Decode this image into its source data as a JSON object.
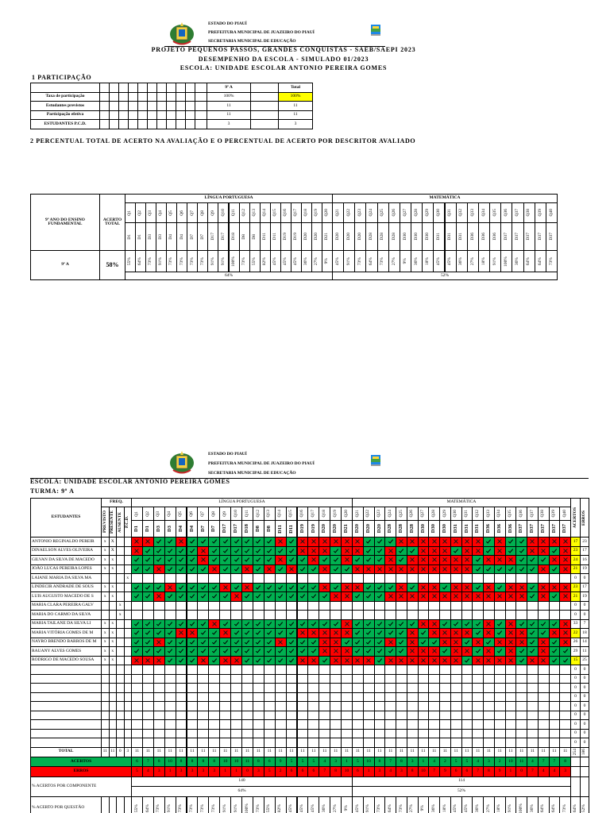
{
  "header": {
    "lines": [
      "ESTADO DO PIAUÍ",
      "PREFEITURA MUNICIPAL DE JUAZEIRO DO PIAUÍ",
      "SECRETARIA MUNICIPAL DE EDUCAÇÃO"
    ],
    "titles": [
      "PROJETO PEQUENOS PASSOS, GRANDES CONQUISTAS - SAEB/SAEPI 2023",
      "DESEMPENHO DA ESCOLA - SIMULADO 01/2023",
      "ESCOLA: UNIDADE ESCOLAR ANTONIO PEREIRA GOMES"
    ]
  },
  "participation": {
    "title": "1 PARTICIPAÇÃO",
    "columns": [
      "9º A",
      "Total"
    ],
    "rows": [
      {
        "label": "Taxa de participação",
        "values": [
          "100%",
          "100%"
        ]
      },
      {
        "label": "Estudantes previstos",
        "values": [
          11,
          11
        ]
      },
      {
        "label": "Participação efetiva",
        "values": [
          11,
          11
        ]
      },
      {
        "label": "ESTUDANTES P.C.D.",
        "values": [
          3,
          3
        ]
      }
    ]
  },
  "section2_title": "2 PERCENTUAL TOTAL DE ACERTO NA AVALIAÇÃO E O PERCENTUAL DE ACERTO POR DESCRITOR AVALIADO",
  "results": {
    "class_label": "9º ANO DO ENSINO FUNDAMENTAL",
    "acerto_total_label": "ACERTO TOTAL",
    "class": "9º A",
    "acerto_total": "58%",
    "subjects": [
      {
        "name": "LÍNGUA PORTUGUESA",
        "percent": "64%"
      },
      {
        "name": "MATEMÁTICA",
        "percent": "52%"
      }
    ]
  },
  "questions": [
    "Q1",
    "Q2",
    "Q3",
    "Q4",
    "Q5",
    "Q6",
    "Q7",
    "Q8",
    "Q9",
    "Q10",
    "Q11",
    "Q12",
    "Q13",
    "Q14",
    "Q15",
    "Q16",
    "Q17",
    "Q18",
    "Q19",
    "Q20",
    "Q21",
    "Q22",
    "Q23",
    "Q24",
    "Q25",
    "Q26",
    "Q27",
    "Q28",
    "Q29",
    "Q30",
    "Q31",
    "Q32",
    "Q33",
    "Q34",
    "Q35",
    "Q36",
    "Q37",
    "Q38",
    "Q39",
    "Q40"
  ],
  "descriptors": [
    "D1",
    "D1",
    "D3",
    "D3",
    "D4",
    "D4",
    "D7",
    "D7",
    "D17",
    "D17",
    "D18",
    "D8",
    "D8",
    "D11",
    "D11",
    "D19",
    "D19",
    "D20",
    "D20",
    "D21",
    "D20",
    "D20",
    "D20",
    "D28",
    "D28",
    "D28",
    "D30",
    "D30",
    "D30",
    "D31",
    "D31",
    "D31",
    "D36",
    "D36",
    "D36",
    "D37",
    "D37",
    "D37",
    "D37",
    "D37"
  ],
  "question_percent": [
    "55%",
    "64%",
    "73%",
    "91%",
    "73%",
    "73%",
    "73%",
    "73%",
    "91%",
    "91%",
    "100%",
    "73%",
    "55%",
    "82%",
    "45%",
    "45%",
    "45%",
    "36%",
    "27%",
    "9%",
    "45%",
    "91%",
    "73%",
    "64%",
    "73%",
    "27%",
    "9%",
    "36%",
    "18%",
    "45%",
    "45%",
    "36%",
    "27%",
    "18%",
    "91%",
    "100%",
    "36%",
    "64%",
    "64%",
    "73%"
  ],
  "grid": {
    "school": "ESCOLA: UNIDADE ESCOLAR ANTONIO PEREIRA GOMES",
    "class": "TURMA: 9º A",
    "students_label": "ESTUDANTES",
    "freq_label": "FREQ.",
    "freq_columns": [
      "PREVISTO",
      "PRESENTE",
      "AUSENTE",
      "P.C.D."
    ],
    "acertos_label": "ACERTOS",
    "erros_label": "ERROS",
    "correct_color": "#00b050",
    "wrong_color": "#ff0000",
    "highlight_color": "#ffff00",
    "students": [
      {
        "name": "ANTONIO REGINALDO PEREIR",
        "freq": [
          "x",
          "X",
          null,
          null
        ],
        "answers": [
          0,
          0,
          1,
          1,
          0,
          1,
          1,
          1,
          1,
          1,
          1,
          1,
          1,
          0,
          1,
          0,
          0,
          0,
          0,
          0,
          0,
          1,
          1,
          1,
          0,
          0,
          0,
          0,
          0,
          0,
          0,
          0,
          1,
          0,
          1,
          1,
          0,
          0,
          0,
          0
        ],
        "acertos": 17,
        "erros": 23,
        "highlight": true
      },
      {
        "name": "DINAELSON ALVES OLIVEIRA",
        "freq": [
          "x",
          "X",
          null,
          null
        ],
        "answers": [
          0,
          1,
          1,
          1,
          1,
          1,
          0,
          1,
          1,
          1,
          1,
          1,
          1,
          1,
          1,
          0,
          0,
          0,
          1,
          0,
          0,
          1,
          1,
          0,
          1,
          1,
          0,
          0,
          0,
          1,
          0,
          0,
          1,
          0,
          1,
          1,
          0,
          0,
          1,
          0
        ],
        "acertos": 23,
        "erros": 17,
        "highlight": true
      },
      {
        "name": "GILVAN DA SILVA DE MACEDO",
        "freq": [
          "x",
          "x",
          null,
          null
        ],
        "answers": [
          1,
          1,
          1,
          1,
          1,
          1,
          0,
          1,
          1,
          1,
          1,
          1,
          1,
          0,
          1,
          1,
          0,
          1,
          1,
          0,
          1,
          1,
          1,
          0,
          1,
          0,
          0,
          0,
          0,
          0,
          0,
          1,
          0,
          0,
          0,
          1,
          1,
          1,
          0,
          0
        ],
        "acertos": 24,
        "erros": 16,
        "highlight": true
      },
      {
        "name": "JOÃO LUCAS PEREIRA LOPES",
        "freq": [
          "x",
          "x",
          null,
          null
        ],
        "answers": [
          1,
          1,
          0,
          1,
          1,
          1,
          1,
          0,
          1,
          1,
          0,
          1,
          0,
          1,
          0,
          1,
          1,
          0,
          1,
          1,
          0,
          0,
          0,
          0,
          0,
          0,
          0,
          0,
          0,
          0,
          0,
          1,
          1,
          1,
          1,
          1,
          1,
          0,
          1,
          0
        ],
        "acertos": 21,
        "erros": 19,
        "highlight": true
      },
      {
        "name": "LAIANE MARIA DA SILVA MA",
        "freq": [
          null,
          null,
          null,
          "x"
        ],
        "answers": null,
        "acertos": 0,
        "erros": 0,
        "highlight": false
      },
      {
        "name": "LINDECIR ANDRADE DE SOUS",
        "freq": [
          "x",
          "x",
          null,
          null
        ],
        "answers": [
          1,
          1,
          1,
          0,
          1,
          1,
          1,
          1,
          0,
          1,
          0,
          1,
          1,
          1,
          1,
          1,
          1,
          0,
          1,
          0,
          0,
          1,
          1,
          1,
          0,
          1,
          0,
          0,
          1,
          0,
          0,
          1,
          0,
          1,
          0,
          0,
          1,
          0,
          0,
          0
        ],
        "acertos": 23,
        "erros": 17,
        "highlight": true
      },
      {
        "name": "LUIS AUGUSTO MACEDO DE S",
        "freq": [
          "x",
          "x",
          null,
          null
        ],
        "answers": [
          1,
          1,
          0,
          1,
          1,
          1,
          1,
          1,
          1,
          0,
          1,
          1,
          1,
          1,
          1,
          1,
          1,
          1,
          0,
          0,
          1,
          1,
          1,
          0,
          0,
          0,
          0,
          0,
          0,
          0,
          0,
          0,
          0,
          0,
          0,
          0,
          1,
          0,
          1,
          0
        ],
        "acertos": 21,
        "erros": 19,
        "highlight": true
      },
      {
        "name": "MARIA CLARA PEREIRA GALV",
        "freq": [
          null,
          null,
          "x",
          null
        ],
        "answers": null,
        "acertos": 0,
        "erros": 0,
        "highlight": false
      },
      {
        "name": "MARIA DO CARMO DA SILVA",
        "freq": [
          null,
          null,
          "x",
          null
        ],
        "answers": null,
        "acertos": 0,
        "erros": 0,
        "highlight": false
      },
      {
        "name": "MARIA TAILANE DA SILVA LI",
        "freq": [
          "x",
          "x",
          null,
          null
        ],
        "answers": [
          1,
          1,
          1,
          1,
          1,
          1,
          1,
          0,
          1,
          1,
          1,
          1,
          1,
          1,
          1,
          1,
          1,
          1,
          1,
          0,
          1,
          1,
          1,
          1,
          1,
          1,
          0,
          0,
          1,
          1,
          1,
          1,
          0,
          1,
          0,
          1,
          1,
          1,
          1,
          0
        ],
        "acertos": 33,
        "erros": 7,
        "highlight": false
      },
      {
        "name": "MARIA VITÓRIA GOMES DE M",
        "freq": [
          "x",
          "x",
          null,
          null
        ],
        "answers": [
          1,
          1,
          1,
          1,
          0,
          0,
          1,
          1,
          0,
          1,
          1,
          1,
          1,
          1,
          1,
          0,
          0,
          0,
          0,
          0,
          1,
          1,
          1,
          1,
          1,
          0,
          1,
          0,
          0,
          0,
          0,
          1,
          0,
          1,
          0,
          0,
          1,
          1,
          0,
          0
        ],
        "acertos": 22,
        "erros": 18,
        "highlight": true
      },
      {
        "name": "NAYRO BRENDO BARROS DE M",
        "freq": [
          "x",
          "x",
          null,
          null
        ],
        "answers": [
          1,
          1,
          0,
          1,
          1,
          1,
          1,
          1,
          1,
          1,
          1,
          1,
          1,
          0,
          1,
          1,
          1,
          0,
          0,
          1,
          1,
          1,
          1,
          0,
          1,
          0,
          1,
          1,
          0,
          0,
          1,
          0,
          1,
          0,
          0,
          0,
          1,
          0,
          1,
          0
        ],
        "acertos": 26,
        "erros": 14,
        "highlight": false
      },
      {
        "name": "RAUANY ALVES GOMES",
        "freq": [
          "x",
          "x",
          null,
          null
        ],
        "answers": [
          1,
          1,
          1,
          1,
          1,
          1,
          1,
          1,
          1,
          1,
          1,
          1,
          1,
          1,
          1,
          1,
          1,
          0,
          0,
          0,
          1,
          1,
          1,
          1,
          1,
          0,
          0,
          0,
          1,
          0,
          0,
          1,
          0,
          1,
          0,
          1,
          1,
          0,
          1,
          1
        ],
        "acertos": 29,
        "erros": 11,
        "highlight": false
      },
      {
        "name": "RODRIGO DE MACEDO SOUSA",
        "freq": [
          "x",
          "x",
          null,
          null
        ],
        "answers": [
          0,
          0,
          0,
          1,
          1,
          1,
          0,
          1,
          0,
          0,
          1,
          1,
          1,
          1,
          1,
          0,
          0,
          1,
          0,
          0,
          0,
          0,
          1,
          0,
          0,
          0,
          0,
          0,
          0,
          0,
          1,
          0,
          0,
          0,
          0,
          1,
          0,
          0,
          1,
          1
        ],
        "acertos": 15,
        "erros": 25,
        "highlight": true
      },
      {
        "name": null,
        "freq": [
          null,
          null,
          null,
          null
        ],
        "answers": null,
        "acertos": 0,
        "erros": 0,
        "highlight": false
      },
      {
        "name": null,
        "freq": [
          null,
          null,
          null,
          null
        ],
        "answers": null,
        "acertos": 0,
        "erros": 0,
        "highlight": false
      },
      {
        "name": null,
        "freq": [
          null,
          null,
          null,
          null
        ],
        "answers": null,
        "acertos": 0,
        "erros": 0,
        "highlight": false
      },
      {
        "name": null,
        "freq": [
          null,
          null,
          null,
          null
        ],
        "answers": null,
        "acertos": 0,
        "erros": 0,
        "highlight": false
      },
      {
        "name": null,
        "freq": [
          null,
          null,
          null,
          null
        ],
        "answers": null,
        "acertos": 0,
        "erros": 0,
        "highlight": false
      },
      {
        "name": null,
        "freq": [
          null,
          null,
          null,
          null
        ],
        "answers": null,
        "acertos": 0,
        "erros": 0,
        "highlight": false
      },
      {
        "name": null,
        "freq": [
          null,
          null,
          null,
          null
        ],
        "answers": null,
        "acertos": 0,
        "erros": 0,
        "highlight": false
      },
      {
        "name": null,
        "freq": [
          null,
          null,
          null,
          null
        ],
        "answers": null,
        "acertos": 0,
        "erros": 0,
        "highlight": false
      },
      {
        "name": null,
        "freq": [
          null,
          null,
          null,
          null
        ],
        "answers": null,
        "acertos": 0,
        "erros": 0,
        "highlight": false
      }
    ],
    "total_label": "TOTAL",
    "totals": {
      "freq": [
        11,
        11,
        0,
        3
      ],
      "questions": [
        11,
        11,
        11,
        11,
        11,
        11,
        11,
        11,
        11,
        11,
        11,
        11,
        11,
        11,
        11,
        11,
        11,
        11,
        11,
        11,
        11,
        11,
        11,
        11,
        11,
        11,
        11,
        11,
        11,
        11,
        11,
        11,
        11,
        11,
        11,
        11,
        11,
        11,
        11,
        11
      ],
      "acertos": 254,
      "erros": 186
    },
    "acertos_per_question": [
      6,
      7,
      8,
      10,
      8,
      8,
      8,
      8,
      10,
      10,
      11,
      8,
      6,
      9,
      5,
      5,
      5,
      4,
      3,
      1,
      5,
      10,
      8,
      7,
      8,
      3,
      1,
      4,
      2,
      5,
      5,
      4,
      3,
      2,
      10,
      11,
      4,
      7,
      7,
      8
    ],
    "erros_per_question": [
      5,
      4,
      3,
      1,
      3,
      3,
      3,
      3,
      1,
      1,
      0,
      3,
      5,
      2,
      6,
      6,
      6,
      7,
      8,
      10,
      6,
      1,
      3,
      4,
      3,
      8,
      10,
      7,
      9,
      6,
      6,
      7,
      8,
      9,
      1,
      0,
      7,
      4,
      4,
      3
    ],
    "component_label": "% ACERTOS POR COMPONENTE",
    "component_counts": [
      140,
      114
    ],
    "question_percent_label": "% ACERTO POR QUESTÃO"
  }
}
